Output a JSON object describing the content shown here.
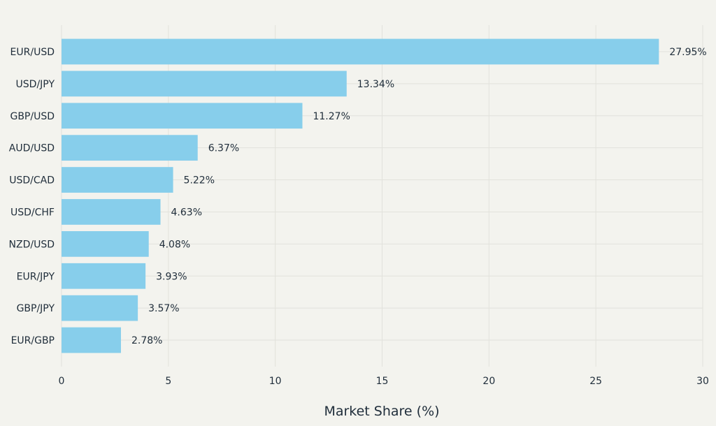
{
  "chart_data": {
    "type": "bar",
    "orientation": "horizontal",
    "title": "",
    "xlabel": "Market Share (%)",
    "ylabel": "",
    "xlim": [
      0,
      30
    ],
    "xticks": [
      0,
      5,
      10,
      15,
      20,
      25,
      30
    ],
    "grid": true,
    "bar_color": "#87ceeb",
    "background_color": "#f3f3ee",
    "categories": [
      "EUR/USD",
      "USD/JPY",
      "GBP/USD",
      "AUD/USD",
      "USD/CAD",
      "USD/CHF",
      "NZD/USD",
      "EUR/JPY",
      "GBP/JPY",
      "EUR/GBP"
    ],
    "values": [
      27.95,
      13.34,
      11.27,
      6.37,
      5.22,
      4.63,
      4.08,
      3.93,
      3.57,
      2.78
    ],
    "value_labels": [
      "27.95%",
      "13.34%",
      "11.27%",
      "6.37%",
      "5.22%",
      "4.63%",
      "4.08%",
      "3.93%",
      "3.57%",
      "2.78%"
    ]
  }
}
